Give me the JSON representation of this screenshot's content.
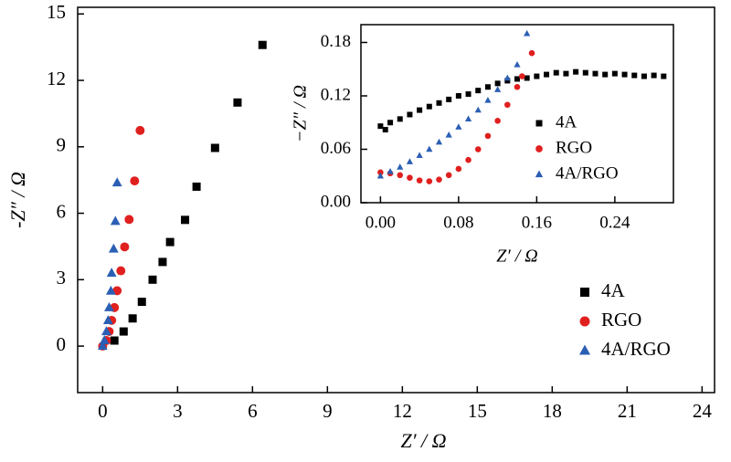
{
  "chart_data": [
    {
      "type": "scatter",
      "xlabel": "Z′ / Ω",
      "ylabel": "-Z″ / Ω",
      "xlim": [
        -1,
        24.5
      ],
      "ylim": [
        -2.1,
        15.3
      ],
      "xticks": [
        0,
        3,
        6,
        9,
        12,
        15,
        18,
        21,
        24
      ],
      "yticks": [
        0,
        3,
        6,
        9,
        12,
        15
      ],
      "legend": "lower right",
      "series": [
        {
          "name": "4A",
          "color": "#000000",
          "marker": "square",
          "x": [
            0.47,
            0.84,
            1.2,
            1.57,
            2.0,
            2.4,
            2.7,
            3.3,
            3.76,
            4.5,
            5.4,
            6.4
          ],
          "values": [
            0.25,
            0.66,
            1.25,
            2.0,
            3.0,
            3.8,
            4.7,
            5.7,
            7.2,
            8.95,
            11.0,
            13.6
          ]
        },
        {
          "name": "RGO",
          "color": "#e0201f",
          "marker": "circle",
          "x": [
            0,
            0.15,
            0.26,
            0.36,
            0.47,
            0.58,
            0.73,
            0.88,
            1.06,
            1.28,
            1.5
          ],
          "values": [
            0,
            0.25,
            0.66,
            1.16,
            1.74,
            2.5,
            3.4,
            4.48,
            5.72,
            7.46,
            9.74
          ]
        },
        {
          "name": "4A/RGO",
          "color": "#2b5fb4",
          "marker": "triangle",
          "x": [
            0,
            0.07,
            0.15,
            0.22,
            0.26,
            0.33,
            0.36,
            0.44,
            0.51,
            0.58
          ],
          "values": [
            0,
            0.25,
            0.66,
            1.16,
            1.74,
            2.49,
            3.3,
            4.39,
            5.64,
            7.38
          ]
        }
      ]
    },
    {
      "type": "scatter",
      "xlabel": "Z′ / Ω",
      "ylabel": "−Z″ / Ω",
      "xlim": [
        -0.02,
        0.3
      ],
      "ylim": [
        0,
        0.2
      ],
      "xticks": [
        {
          "value": 0,
          "label": "0.00"
        },
        {
          "value": 0.08,
          "label": "0.08"
        },
        {
          "value": 0.16,
          "label": "0.16"
        },
        {
          "value": 0.24,
          "label": "0.24"
        }
      ],
      "yticks": [
        {
          "value": 0,
          "label": "0.00"
        },
        {
          "value": 0.06,
          "label": "0.06"
        },
        {
          "value": 0.12,
          "label": "0.12"
        },
        {
          "value": 0.18,
          "label": "0.18"
        }
      ],
      "legend": "center right",
      "series": [
        {
          "name": "4A",
          "color": "#000000",
          "marker": "square",
          "x": [
            0,
            0.005,
            0.01,
            0.02,
            0.03,
            0.04,
            0.05,
            0.06,
            0.07,
            0.08,
            0.09,
            0.1,
            0.11,
            0.12,
            0.13,
            0.14,
            0.15,
            0.16,
            0.17,
            0.18,
            0.19,
            0.2,
            0.21,
            0.22,
            0.23,
            0.24,
            0.25,
            0.26,
            0.27,
            0.28,
            0.29
          ],
          "values": [
            0.086,
            0.082,
            0.09,
            0.094,
            0.099,
            0.104,
            0.108,
            0.112,
            0.116,
            0.12,
            0.122,
            0.126,
            0.13,
            0.134,
            0.137,
            0.139,
            0.14,
            0.142,
            0.144,
            0.146,
            0.145,
            0.147,
            0.146,
            0.145,
            0.144,
            0.145,
            0.144,
            0.143,
            0.142,
            0.143,
            0.142
          ]
        },
        {
          "name": "RGO",
          "color": "#e0201f",
          "marker": "circle",
          "x": [
            0,
            0.01,
            0.02,
            0.03,
            0.04,
            0.05,
            0.06,
            0.07,
            0.08,
            0.09,
            0.1,
            0.11,
            0.12,
            0.13,
            0.14,
            0.145,
            0.155
          ],
          "values": [
            0.034,
            0.033,
            0.031,
            0.028,
            0.025,
            0.024,
            0.026,
            0.031,
            0.038,
            0.048,
            0.06,
            0.075,
            0.092,
            0.11,
            0.13,
            0.142,
            0.168
          ]
        },
        {
          "name": "4A/RGO",
          "color": "#2b5fb4",
          "marker": "triangle",
          "x": [
            0,
            0.01,
            0.02,
            0.03,
            0.04,
            0.05,
            0.06,
            0.07,
            0.08,
            0.09,
            0.1,
            0.11,
            0.12,
            0.13,
            0.14,
            0.15
          ],
          "values": [
            0.03,
            0.035,
            0.04,
            0.046,
            0.053,
            0.06,
            0.068,
            0.076,
            0.085,
            0.094,
            0.104,
            0.115,
            0.127,
            0.14,
            0.155,
            0.19
          ]
        }
      ]
    }
  ]
}
